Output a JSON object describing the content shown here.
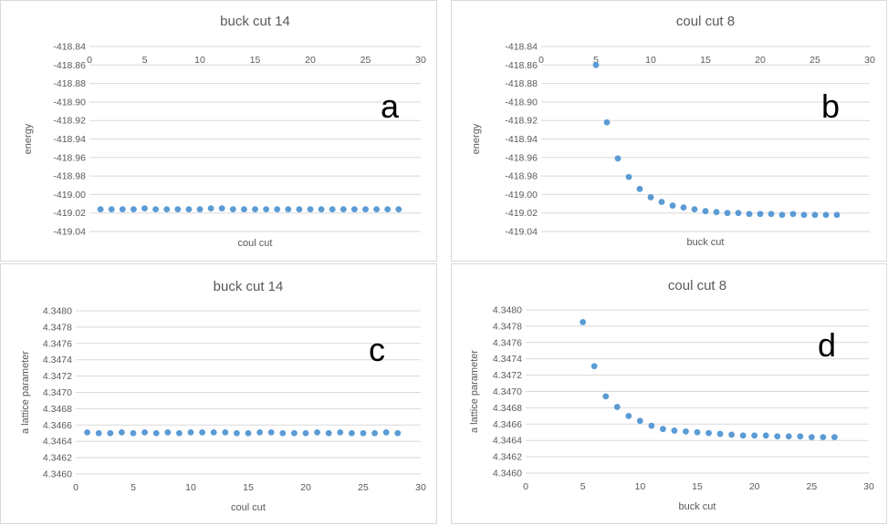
{
  "colors": {
    "marker": "#5b9bd5",
    "grid": "#d9d9d9",
    "text": "#595959",
    "title": "#595959",
    "letter": "#000000"
  },
  "chart_data": [
    {
      "type": "scatter",
      "title": "buck cut 14",
      "panel_label": "a",
      "xlabel": "coul cut",
      "ylabel": "energy",
      "xlim": [
        0,
        30
      ],
      "ylim": [
        -419.04,
        -418.84
      ],
      "xticks": [
        0,
        5,
        10,
        15,
        20,
        25,
        30
      ],
      "yticks": [
        -418.84,
        -418.86,
        -418.88,
        -418.9,
        -418.92,
        -418.94,
        -418.96,
        -418.98,
        -419.0,
        -419.02,
        -419.04
      ],
      "xtick_labels": [
        "0",
        "5",
        "10",
        "15",
        "20",
        "25",
        "30"
      ],
      "ytick_labels": [
        "-418.84",
        "-418.86",
        "-418.88",
        "-418.90",
        "-418.92",
        "-418.94",
        "-418.96",
        "-418.98",
        "-419.00",
        "-419.02",
        "-419.04"
      ],
      "x_axis_position": "top",
      "grid": true,
      "x": [
        1,
        2,
        3,
        4,
        5,
        6,
        7,
        8,
        9,
        10,
        11,
        12,
        13,
        14,
        15,
        16,
        17,
        18,
        19,
        20,
        21,
        22,
        23,
        24,
        25,
        26,
        27,
        28
      ],
      "y": [
        -419.016,
        -419.016,
        -419.016,
        -419.016,
        -419.015,
        -419.016,
        -419.016,
        -419.016,
        -419.016,
        -419.016,
        -419.015,
        -419.015,
        -419.016,
        -419.016,
        -419.016,
        -419.016,
        -419.016,
        -419.016,
        -419.016,
        -419.016,
        -419.016,
        -419.016,
        -419.016,
        -419.016,
        -419.016,
        -419.016,
        -419.016,
        -419.016
      ]
    },
    {
      "type": "scatter",
      "title": "coul cut 8",
      "panel_label": "b",
      "xlabel": "buck cut",
      "ylabel": "energy",
      "xlim": [
        0,
        30
      ],
      "ylim": [
        -419.04,
        -418.84
      ],
      "xticks": [
        0,
        5,
        10,
        15,
        20,
        25,
        30
      ],
      "yticks": [
        -418.84,
        -418.86,
        -418.88,
        -418.9,
        -418.92,
        -418.94,
        -418.96,
        -418.98,
        -419.0,
        -419.02,
        -419.04
      ],
      "xtick_labels": [
        "0",
        "5",
        "10",
        "15",
        "20",
        "25",
        "30"
      ],
      "ytick_labels": [
        "-418.84",
        "-418.86",
        "-418.88",
        "-418.90",
        "-418.92",
        "-418.94",
        "-418.96",
        "-418.98",
        "-419.00",
        "-419.02",
        "-419.04"
      ],
      "x_axis_position": "top",
      "grid": true,
      "x": [
        5,
        6,
        7,
        8,
        9,
        10,
        11,
        12,
        13,
        14,
        15,
        16,
        17,
        18,
        19,
        20,
        21,
        22,
        23,
        24,
        25,
        26,
        27
      ],
      "y": [
        -418.86,
        -418.922,
        -418.961,
        -418.981,
        -418.994,
        -419.003,
        -419.008,
        -419.012,
        -419.014,
        -419.016,
        -419.018,
        -419.019,
        -419.02,
        -419.02,
        -419.021,
        -419.021,
        -419.021,
        -419.022,
        -419.021,
        -419.022,
        -419.022,
        -419.022,
        -419.022
      ]
    },
    {
      "type": "scatter",
      "title": "buck cut 14",
      "panel_label": "c",
      "xlabel": "coul cut",
      "ylabel": "a lattice parameter",
      "xlim": [
        0,
        30
      ],
      "ylim": [
        4.346,
        4.348
      ],
      "xticks": [
        0,
        5,
        10,
        15,
        20,
        25,
        30
      ],
      "yticks": [
        4.348,
        4.3478,
        4.3476,
        4.3474,
        4.3472,
        4.347,
        4.3468,
        4.3466,
        4.3464,
        4.3462,
        4.346
      ],
      "xtick_labels": [
        "0",
        "5",
        "10",
        "15",
        "20",
        "25",
        "30"
      ],
      "ytick_labels": [
        "4.3480",
        "4.3478",
        "4.3476",
        "4.3474",
        "4.3472",
        "4.3470",
        "4.3468",
        "4.3466",
        "4.3464",
        "4.3462",
        "4.3460"
      ],
      "x_axis_position": "bottom",
      "grid": true,
      "x": [
        1,
        2,
        3,
        4,
        5,
        6,
        7,
        8,
        9,
        10,
        11,
        12,
        13,
        14,
        15,
        16,
        17,
        18,
        19,
        20,
        21,
        22,
        23,
        24,
        25,
        26,
        27,
        28
      ],
      "y": [
        4.34651,
        4.3465,
        4.3465,
        4.34651,
        4.3465,
        4.34651,
        4.3465,
        4.34651,
        4.3465,
        4.34651,
        4.34651,
        4.34651,
        4.34651,
        4.3465,
        4.3465,
        4.34651,
        4.34651,
        4.3465,
        4.3465,
        4.3465,
        4.34651,
        4.3465,
        4.34651,
        4.3465,
        4.3465,
        4.3465,
        4.34651,
        4.3465
      ]
    },
    {
      "type": "scatter",
      "title": "coul cut 8",
      "panel_label": "d",
      "xlabel": "buck cut",
      "ylabel": "a lattice parameter",
      "xlim": [
        0,
        30
      ],
      "ylim": [
        4.346,
        4.348
      ],
      "xticks": [
        0,
        5,
        10,
        15,
        20,
        25,
        30
      ],
      "yticks": [
        4.348,
        4.3478,
        4.3476,
        4.3474,
        4.3472,
        4.347,
        4.3468,
        4.3466,
        4.3464,
        4.3462,
        4.346
      ],
      "xtick_labels": [
        "0",
        "5",
        "10",
        "15",
        "20",
        "25",
        "30"
      ],
      "ytick_labels": [
        "4.3480",
        "4.3478",
        "4.3476",
        "4.3474",
        "4.3472",
        "4.3470",
        "4.3468",
        "4.3466",
        "4.3464",
        "4.3462",
        "4.3460"
      ],
      "x_axis_position": "bottom",
      "grid": true,
      "x": [
        5,
        6,
        7,
        8,
        9,
        10,
        11,
        12,
        13,
        14,
        15,
        16,
        17,
        18,
        19,
        20,
        21,
        22,
        23,
        24,
        25,
        26,
        27
      ],
      "y": [
        4.34785,
        4.34731,
        4.34694,
        4.34681,
        4.3467,
        4.34664,
        4.34658,
        4.34654,
        4.34652,
        4.34651,
        4.3465,
        4.34649,
        4.34648,
        4.34647,
        4.34646,
        4.34646,
        4.34646,
        4.34645,
        4.34645,
        4.34645,
        4.34644,
        4.34644,
        4.34644
      ]
    }
  ]
}
